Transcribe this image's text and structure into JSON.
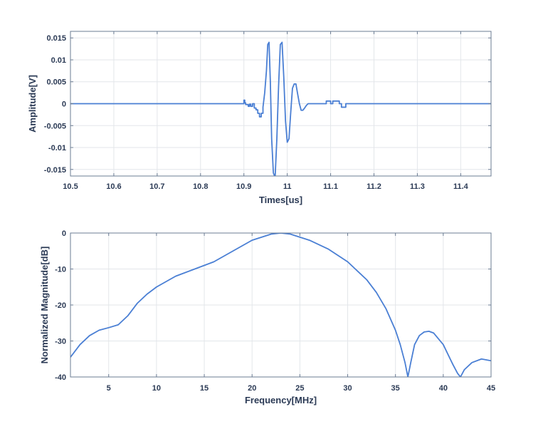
{
  "chart_data": [
    {
      "type": "line",
      "xlabel": "Times[us]",
      "ylabel": "Amplitude[V]",
      "xlim": [
        10.5,
        11.47
      ],
      "ylim": [
        -0.0165,
        0.0165
      ],
      "xticks": [
        10.5,
        10.6,
        10.7,
        10.8,
        10.9,
        11,
        11.1,
        11.2,
        11.3,
        11.4
      ],
      "xtick_labels": [
        "10.5",
        "10.6",
        "10.7",
        "10.8",
        "10.9",
        "11",
        "11.1",
        "11.2",
        "11.3",
        "11.4"
      ],
      "yticks": [
        0.015,
        0.01,
        0.005,
        0,
        -0.005,
        -0.01,
        -0.015
      ],
      "ytick_labels": [
        "0.015",
        "0.01",
        "0.005",
        "0",
        "-0.005",
        "-0.01",
        "-0.015"
      ],
      "grid": true,
      "color": "#4a7fd4",
      "series": [
        {
          "x": [
            10.5,
            10.9,
            10.9,
            10.902,
            10.902,
            10.904,
            10.904,
            10.91,
            10.91,
            10.913,
            10.913,
            10.916,
            10.916,
            10.92,
            10.92,
            10.924,
            10.924,
            10.928,
            10.928,
            10.932,
            10.932,
            10.936,
            10.936,
            10.94,
            10.94,
            10.944,
            10.944,
            10.948,
            10.952,
            10.955,
            10.958,
            10.961,
            10.964,
            10.968,
            10.972,
            10.976,
            10.98,
            10.984,
            10.988,
            10.992,
            10.996,
            11.0,
            11.004,
            11.008,
            11.012,
            11.016,
            11.02,
            11.024,
            11.028,
            11.032,
            11.036,
            11.04,
            11.044,
            11.048,
            11.052,
            11.056,
            11.06,
            11.064,
            11.068,
            11.072,
            11.076,
            11.08,
            11.084,
            11.088,
            11.09,
            11.09,
            11.095,
            11.095,
            11.1,
            11.1,
            11.105,
            11.105,
            11.12,
            11.12,
            11.125,
            11.125,
            11.13,
            11.13,
            11.135,
            11.135,
            11.14,
            11.14,
            11.47
          ],
          "y": [
            0,
            0,
            0.0008,
            0.0008,
            0.0002,
            0.0002,
            -0.0002,
            -0.0002,
            -0.0006,
            -0.0006,
            -0.0001,
            -0.0001,
            -0.0006,
            -0.0006,
            0,
            0,
            -0.001,
            -0.001,
            -0.0014,
            -0.0014,
            -0.0022,
            -0.0022,
            -0.003,
            -0.003,
            -0.0022,
            -0.0022,
            -0.0008,
            0.0025,
            0.0075,
            0.0135,
            0.014,
            0.005,
            -0.008,
            -0.0158,
            -0.0168,
            -0.008,
            0.004,
            0.0135,
            0.014,
            0.006,
            -0.004,
            -0.0088,
            -0.008,
            -0.002,
            0.0035,
            0.0045,
            0.0045,
            0.0022,
            0,
            -0.0015,
            -0.0015,
            -0.001,
            -0.0004,
            0,
            0,
            0,
            0,
            0,
            0,
            0,
            0,
            0,
            0,
            0,
            0,
            0.0006,
            0.0006,
            0.0006,
            0.0006,
            0,
            0,
            0.0006,
            0.0006,
            0,
            0,
            -0.0008,
            -0.0008,
            -0.0008,
            -0.0008,
            0,
            0,
            0,
            0
          ]
        }
      ]
    },
    {
      "type": "line",
      "xlabel": "Frequency[MHz]",
      "ylabel": "Normalized Magnitude[dB]",
      "xlim": [
        1,
        45
      ],
      "ylim": [
        -40,
        0
      ],
      "xticks": [
        5,
        10,
        15,
        20,
        25,
        30,
        35,
        40,
        45
      ],
      "xtick_labels": [
        "5",
        "10",
        "15",
        "20",
        "25",
        "30",
        "35",
        "40",
        "45"
      ],
      "yticks": [
        0,
        -10,
        -20,
        -30,
        -40
      ],
      "ytick_labels": [
        "0",
        "-10",
        "-20",
        "-30",
        "-40"
      ],
      "grid": true,
      "color": "#4a7fd4",
      "series": [
        {
          "x": [
            1,
            2,
            3,
            4,
            5,
            6,
            7,
            8,
            9,
            10,
            12,
            14,
            16,
            18,
            20,
            22,
            23,
            24,
            26,
            28,
            30,
            32,
            33,
            34,
            35,
            35.5,
            36,
            36.3,
            36.6,
            37,
            37.5,
            38,
            38.5,
            39,
            40,
            41,
            41.5,
            41.8,
            42.2,
            43,
            44,
            45
          ],
          "y": [
            -34.5,
            -31,
            -28.5,
            -27,
            -26.3,
            -25.5,
            -23,
            -19.5,
            -17,
            -15,
            -12,
            -10,
            -8,
            -5,
            -2,
            -0.3,
            0,
            -0.3,
            -2,
            -4.5,
            -8,
            -13,
            -16.5,
            -21,
            -27,
            -31,
            -36,
            -40,
            -36,
            -31,
            -28.5,
            -27.5,
            -27.3,
            -27.8,
            -31,
            -36.5,
            -39,
            -40,
            -38,
            -36,
            -35,
            -35.5
          ]
        }
      ]
    }
  ]
}
